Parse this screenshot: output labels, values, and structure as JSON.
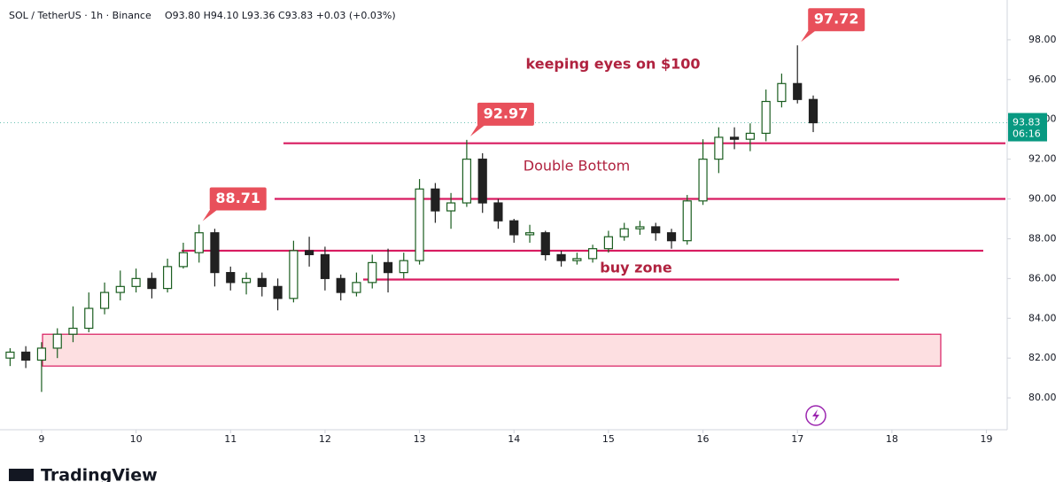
{
  "chart_data": {
    "type": "candlestick",
    "symbol": "SOL / TetherUS · 1h · Binance",
    "ohlc": "O93.80 H94.10 L93.36 C93.83 +0.03 (+0.03%)",
    "brand": "TradingView",
    "x": [
      8.667,
      8.833,
      9.0,
      9.167,
      9.333,
      9.5,
      9.667,
      9.833,
      10.0,
      10.167,
      10.333,
      10.5,
      10.667,
      10.833,
      11.0,
      11.167,
      11.333,
      11.5,
      11.667,
      11.833,
      12.0,
      12.167,
      12.333,
      12.5,
      12.667,
      12.833,
      13.0,
      13.167,
      13.333,
      13.5,
      13.667,
      13.833,
      14.0,
      14.167,
      14.333,
      14.5,
      14.667,
      14.833,
      15.0,
      15.167,
      15.333,
      15.5,
      15.667,
      15.833,
      16.0,
      16.167,
      16.333,
      16.5,
      16.667,
      16.833,
      17.0,
      17.167
    ],
    "open": [
      82.0,
      82.3,
      81.9,
      82.5,
      83.2,
      83.5,
      84.5,
      85.3,
      85.6,
      86.0,
      85.5,
      86.6,
      87.3,
      88.3,
      86.3,
      85.8,
      86.0,
      85.6,
      85.0,
      87.4,
      87.2,
      86.0,
      85.3,
      85.8,
      86.8,
      86.3,
      86.9,
      90.5,
      89.4,
      89.8,
      92.0,
      89.8,
      88.9,
      88.2,
      88.3,
      87.2,
      86.9,
      87.0,
      87.5,
      88.1,
      88.5,
      88.6,
      88.3,
      87.9,
      89.9,
      92.0,
      93.1,
      93.0,
      93.3,
      94.9,
      95.8,
      95.0
    ],
    "high": [
      82.5,
      82.6,
      82.8,
      83.5,
      84.6,
      85.3,
      85.8,
      86.4,
      86.5,
      86.3,
      87.0,
      87.8,
      88.71,
      88.5,
      86.6,
      86.3,
      86.3,
      86.0,
      87.9,
      88.1,
      87.6,
      86.2,
      86.3,
      87.2,
      87.5,
      87.3,
      91.0,
      90.8,
      90.3,
      92.97,
      92.3,
      90.0,
      89.0,
      88.7,
      88.4,
      87.4,
      87.3,
      87.7,
      88.4,
      88.8,
      88.9,
      88.8,
      88.5,
      90.2,
      93.0,
      93.6,
      93.6,
      93.8,
      95.5,
      96.3,
      97.72,
      95.2
    ],
    "low": [
      81.6,
      81.5,
      80.3,
      82.0,
      82.8,
      83.3,
      84.2,
      84.9,
      85.3,
      85.0,
      85.3,
      86.5,
      86.8,
      85.6,
      85.4,
      85.2,
      85.1,
      84.4,
      84.8,
      86.6,
      85.4,
      84.9,
      85.1,
      85.5,
      85.3,
      86.0,
      86.7,
      88.8,
      88.5,
      89.6,
      89.3,
      88.5,
      87.8,
      87.8,
      86.9,
      86.6,
      86.7,
      86.8,
      87.3,
      87.9,
      88.2,
      87.9,
      87.5,
      87.7,
      89.7,
      91.3,
      92.5,
      92.4,
      92.9,
      94.6,
      94.8,
      93.36
    ],
    "close": [
      82.3,
      81.9,
      82.5,
      83.2,
      83.5,
      84.5,
      85.3,
      85.6,
      86.0,
      85.5,
      86.6,
      87.3,
      88.3,
      86.3,
      85.8,
      86.0,
      85.6,
      85.0,
      87.4,
      87.2,
      86.0,
      85.3,
      85.8,
      86.8,
      86.3,
      86.9,
      90.5,
      89.4,
      89.8,
      92.0,
      89.8,
      88.9,
      88.2,
      88.3,
      87.2,
      86.9,
      87.0,
      87.5,
      88.1,
      88.5,
      88.6,
      88.3,
      87.9,
      89.9,
      92.0,
      93.1,
      93.0,
      93.3,
      94.9,
      95.8,
      95.0,
      93.83
    ],
    "up_color": "#1b5e20",
    "down_color": "#212121",
    "xlim": [
      8.56,
      19.22
    ],
    "ylim": [
      78.4,
      100.0
    ],
    "xticks": [
      9,
      10,
      11,
      12,
      13,
      14,
      15,
      16,
      17,
      18,
      19
    ],
    "yticks": [
      {
        "value": 80,
        "label": "80.00"
      },
      {
        "value": 82,
        "label": "82.00"
      },
      {
        "value": 84,
        "label": "84.00"
      },
      {
        "value": 86,
        "label": "86.00"
      },
      {
        "value": 88,
        "label": "88.00"
      },
      {
        "value": 90,
        "label": "90.00"
      },
      {
        "value": 92,
        "label": "92.00"
      },
      {
        "value": 94,
        "label": "94.00"
      },
      {
        "value": 96,
        "label": "96.00"
      },
      {
        "value": 98,
        "label": "98.00"
      }
    ],
    "levels": [
      92.8,
      90.0,
      87.4,
      85.95
    ],
    "level_color": "#d81b60",
    "zone": [
      81.6,
      83.2
    ],
    "callouts": [
      88.71,
      92.97,
      97.72
    ],
    "callout_color": "#e8505b",
    "annotations": [
      "keeping eyes on $100",
      "Double Bottom",
      "buy zone"
    ],
    "annotation_color": "#b0223f",
    "last_price": {
      "value": 93.83,
      "label": "93.83"
    },
    "countdown": "06:16",
    "last_color": "#089981"
  }
}
